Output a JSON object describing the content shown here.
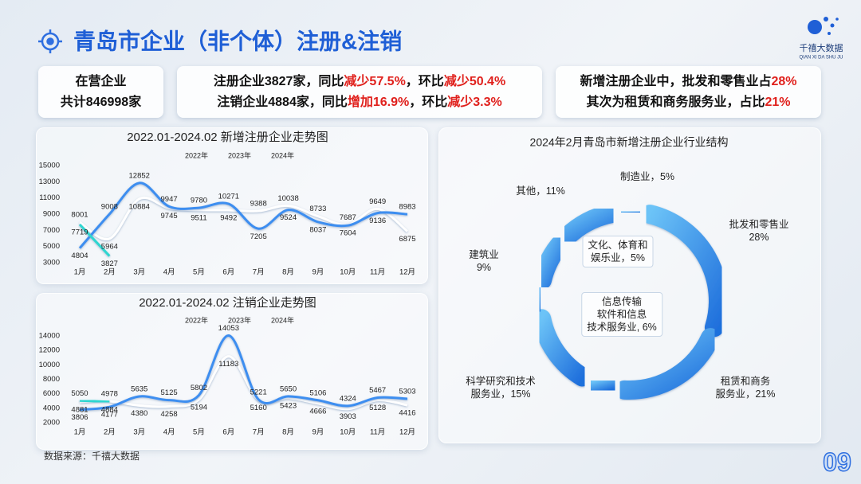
{
  "header": {
    "title": "青岛市企业（非个体）注册&注销",
    "logo": "千禧大数据",
    "logo_sub": "QIAN XI DA SHU JU"
  },
  "boxes": [
    {
      "lines": [
        [
          {
            "text": "在营企业"
          }
        ],
        [
          {
            "text": "共计846998家"
          }
        ]
      ]
    },
    {
      "lines": [
        [
          {
            "text": "注册企业3827家，同比"
          },
          {
            "text": "减少57.5%",
            "color": "#e0201c"
          },
          {
            "text": "，环比"
          },
          {
            "text": "减少50.4%",
            "color": "#e0201c"
          }
        ],
        [
          {
            "text": "注销企业4884家，同比"
          },
          {
            "text": "增加16.9%",
            "color": "#e0201c"
          },
          {
            "text": "，环比"
          },
          {
            "text": "减少3.3%",
            "color": "#e0201c"
          }
        ]
      ]
    },
    {
      "lines": [
        [
          {
            "text": "新增注册企业中，批发和零售业占"
          },
          {
            "text": "28%",
            "color": "#e0201c"
          }
        ],
        [
          {
            "text": "其次为租赁和商务服务业，占比"
          },
          {
            "text": "21%",
            "color": "#e0201c"
          }
        ]
      ]
    }
  ],
  "chart_data": [
    {
      "type": "line",
      "title": "2022.01-2024.02 新增注册企业走势图",
      "categories": [
        "1月",
        "2月",
        "3月",
        "4月",
        "5月",
        "6月",
        "7月",
        "8月",
        "9月",
        "10月",
        "11月",
        "12月"
      ],
      "series": [
        {
          "name": "2022年",
          "color": "#ffffff",
          "values": [
            8001,
            5964,
            10884,
            9745,
            9511,
            9492,
            9388,
            10038,
            8733,
            7687,
            9649,
            6875
          ]
        },
        {
          "name": "2023年",
          "color": "#3d8ef0",
          "values": [
            4804,
            9008,
            12852,
            9947,
            9780,
            10271,
            7205,
            9524,
            8037,
            7604,
            9136,
            8983
          ]
        },
        {
          "name": "2024年",
          "color": "#2fd6d0",
          "values": [
            7719,
            3827,
            null,
            null,
            null,
            null,
            null,
            null,
            null,
            null,
            null,
            null
          ]
        }
      ],
      "ylim": [
        3000,
        15000
      ],
      "yticks": [
        3000,
        5000,
        7000,
        9000,
        11000,
        13000,
        15000
      ]
    },
    {
      "type": "line",
      "title": "2022.01-2024.02 注销企业走势图",
      "categories": [
        "1月",
        "2月",
        "3月",
        "4月",
        "5月",
        "6月",
        "7月",
        "8月",
        "9月",
        "10月",
        "11月",
        "12月"
      ],
      "series": [
        {
          "name": "2022年",
          "color": "#ffffff",
          "values": [
            4881,
            4978,
            4380,
            4258,
            5194,
            11183,
            5160,
            5423,
            4666,
            3903,
            5128,
            4416
          ]
        },
        {
          "name": "2023年",
          "color": "#3d8ef0",
          "values": [
            3806,
            4177,
            5635,
            5125,
            5802,
            14053,
            5221,
            5650,
            5106,
            4324,
            5467,
            5303
          ]
        },
        {
          "name": "2024年",
          "color": "#2fd6d0",
          "values": [
            5050,
            4884,
            null,
            null,
            null,
            null,
            null,
            null,
            null,
            null,
            null,
            null
          ]
        }
      ],
      "ylim": [
        2000,
        14000
      ],
      "yticks": [
        2000,
        4000,
        6000,
        8000,
        10000,
        12000,
        14000
      ]
    },
    {
      "type": "donut",
      "title": "2024年2月青岛市新增注册企业行业结构",
      "color": "#3a8fe8",
      "labels": [
        "制造业，5%",
        "批发和零售业\n28%",
        "租赁和商务\n服务业，21%",
        "信息传输\n软件和信息\n技术服务业, 6%",
        "科学研究和技术\n服务业，15%",
        "文化、体育和\n娱乐业，5%",
        "建筑业\n9%",
        "其他，11%"
      ],
      "values": [
        5,
        28,
        21,
        6,
        15,
        5,
        9,
        11
      ]
    }
  ],
  "footer": {
    "source": "数据来源：千禧大数据",
    "page": "09"
  }
}
